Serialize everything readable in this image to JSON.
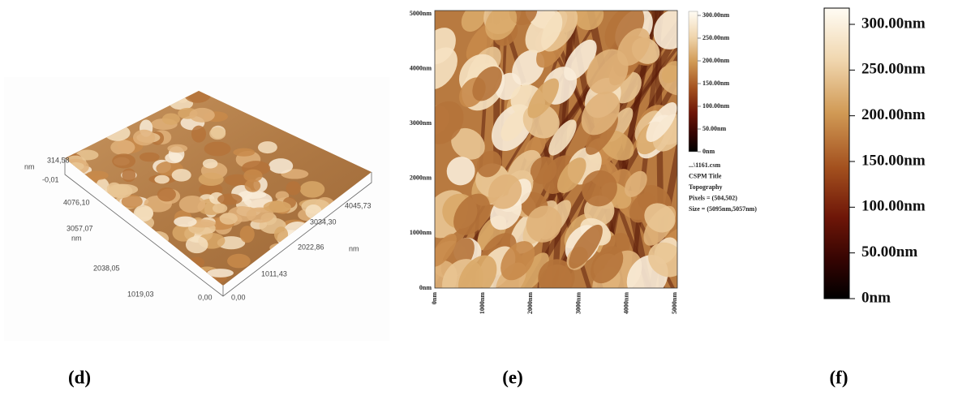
{
  "panel_d": {
    "z_labels": [
      "314,58",
      "nm",
      "-0,01"
    ],
    "axis_labels": [
      "4076,10",
      "3057,07",
      "nm",
      "2038,05",
      "1019,03",
      "0,00",
      "0,00",
      "1011,43",
      "2022,86",
      "nm",
      "3034,30",
      "4045,73"
    ],
    "caption": "(d)"
  },
  "panel_e": {
    "y_labels": [
      "5000nm",
      "4000nm",
      "3000nm",
      "2000nm",
      "1000nm",
      "0nm"
    ],
    "x_labels": [
      "0nm",
      "1000nm",
      "2000nm",
      "3000nm",
      "4000nm",
      "5000nm"
    ],
    "colorbar_labels": [
      "300.00nm",
      "250.00nm",
      "200.00nm",
      "150.00nm",
      "100.00nm",
      "50.00nm",
      "0nm"
    ],
    "info": [
      "...\\1161.csm",
      "CSPM Title",
      "Topography",
      "Pixels = (504,502)",
      "Size = (5095nm,5057nm)"
    ],
    "caption": "(e)"
  },
  "panel_f": {
    "colorbar_labels": [
      "300.00nm",
      "250.00nm",
      "200.00nm",
      "150.00nm",
      "100.00nm",
      "50.00nm",
      "0nm"
    ],
    "caption": "(f)"
  }
}
